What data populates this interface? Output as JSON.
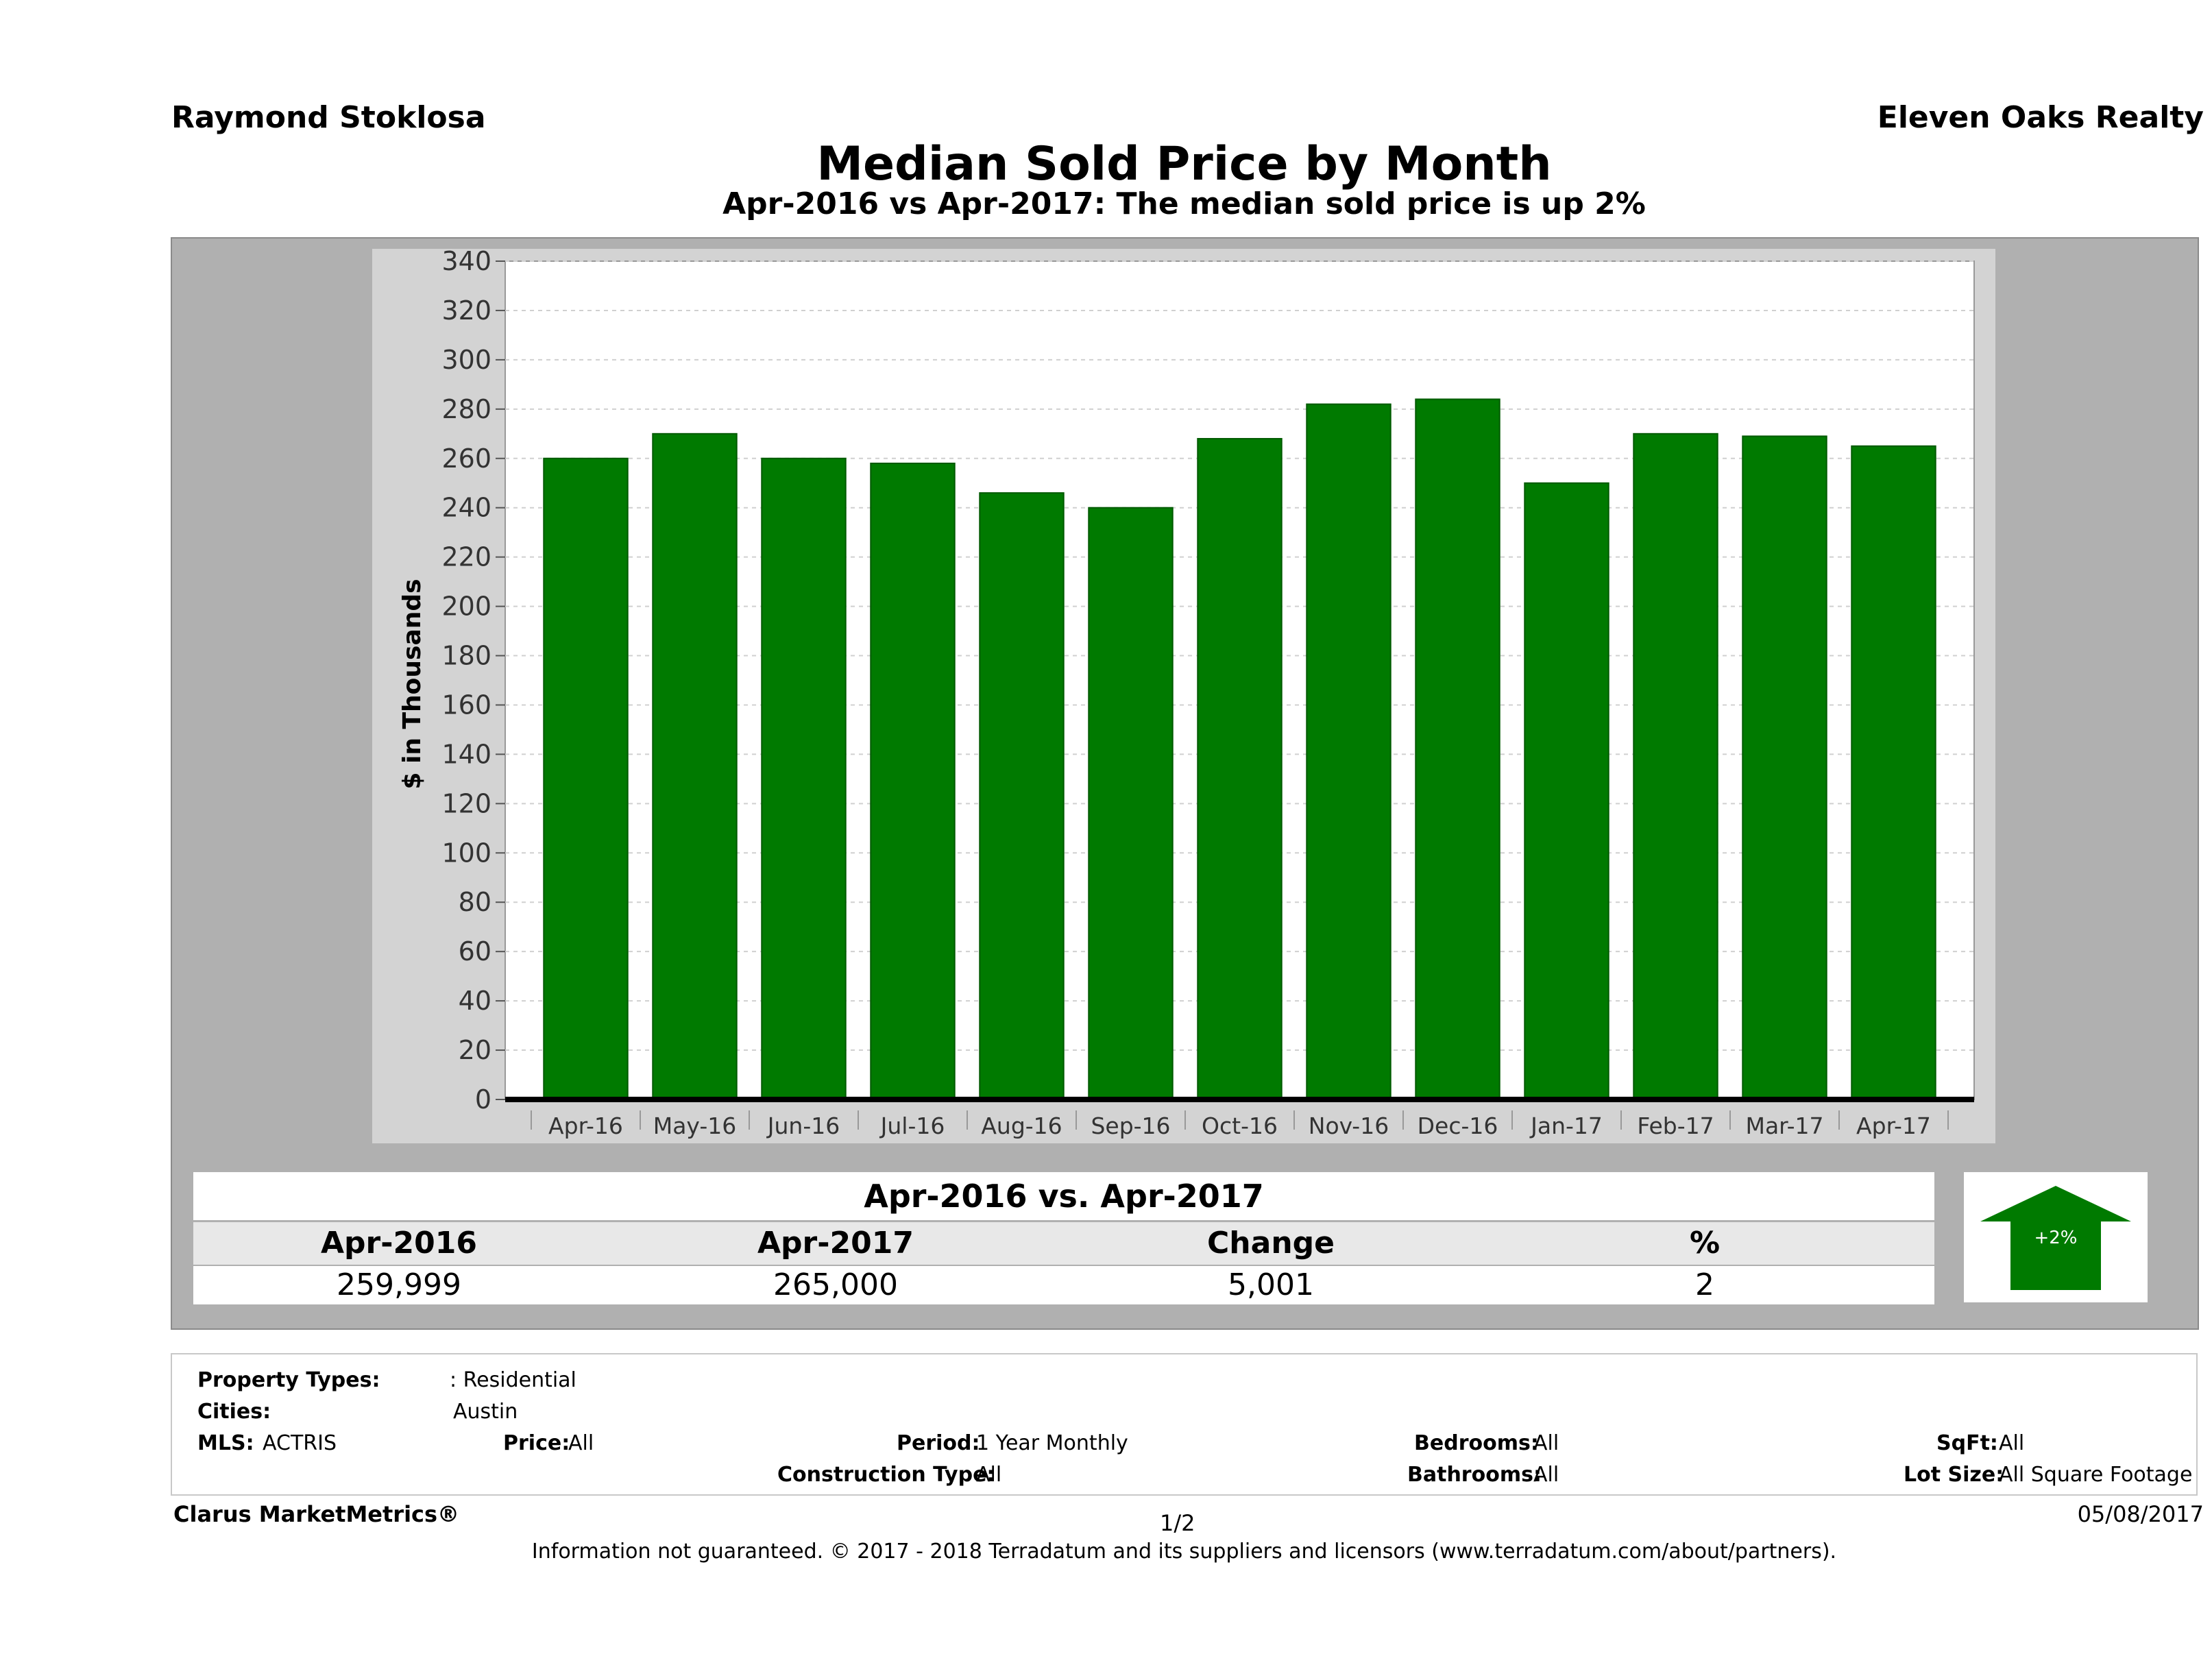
{
  "header": {
    "agent": "Raymond Stoklosa",
    "company": "Eleven Oaks Realty",
    "title": "Median Sold Price by Month",
    "subtitle": "Apr-2016 vs Apr-2017: The median sold price is up 2%"
  },
  "chart_data": {
    "type": "bar",
    "title": "Median Sold Price by Month",
    "subtitle": "Apr-2016 vs Apr-2017: The median sold price is up 2%",
    "xlabel": "",
    "ylabel": "$ in Thousands",
    "ylim": [
      0,
      340
    ],
    "yticks": [
      0,
      20,
      40,
      60,
      80,
      100,
      120,
      140,
      160,
      180,
      200,
      220,
      240,
      260,
      280,
      300,
      320,
      340
    ],
    "grid": true,
    "categories": [
      "Apr-16",
      "May-16",
      "Jun-16",
      "Jul-16",
      "Aug-16",
      "Sep-16",
      "Oct-16",
      "Nov-16",
      "Dec-16",
      "Jan-17",
      "Feb-17",
      "Mar-17",
      "Apr-17"
    ],
    "values": [
      260,
      270,
      260,
      258,
      246,
      240,
      268,
      282,
      284,
      250,
      270,
      269,
      265
    ],
    "bar_color": "#007a00"
  },
  "comparison": {
    "title": "Apr-2016 vs. Apr-2017",
    "headers": [
      "Apr-2016",
      "Apr-2017",
      "Change",
      "%"
    ],
    "values": [
      "259,999",
      "265,000",
      "5,001",
      "2"
    ],
    "badge": "+2%",
    "badge_color": "#007a00"
  },
  "filters": {
    "property_types_label": "Property Types:",
    "property_types_value": ": Residential",
    "cities_label": "Cities:",
    "cities_value": "Austin",
    "mls_label": "MLS:",
    "mls_value": "ACTRIS",
    "price_label": "Price:",
    "price_value": "All",
    "period_label": "Period:",
    "period_value": "1 Year Monthly",
    "bedrooms_label": "Bedrooms:",
    "bedrooms_value": "All",
    "sqft_label": "SqFt:",
    "sqft_value": "All",
    "construction_label": "Construction Type:",
    "construction_value": "All",
    "bathrooms_label": "Bathrooms:",
    "bathrooms_value": "All",
    "lotsize_label": "Lot Size:",
    "lotsize_value": "All Square Footage"
  },
  "footer": {
    "brand": "Clarus MarketMetrics®",
    "page": "1/2",
    "date": "05/08/2017",
    "legal": "Information not guaranteed. © 2017 - 2018 Terradatum and its suppliers and licensors (www.terradatum.com/about/partners)."
  }
}
